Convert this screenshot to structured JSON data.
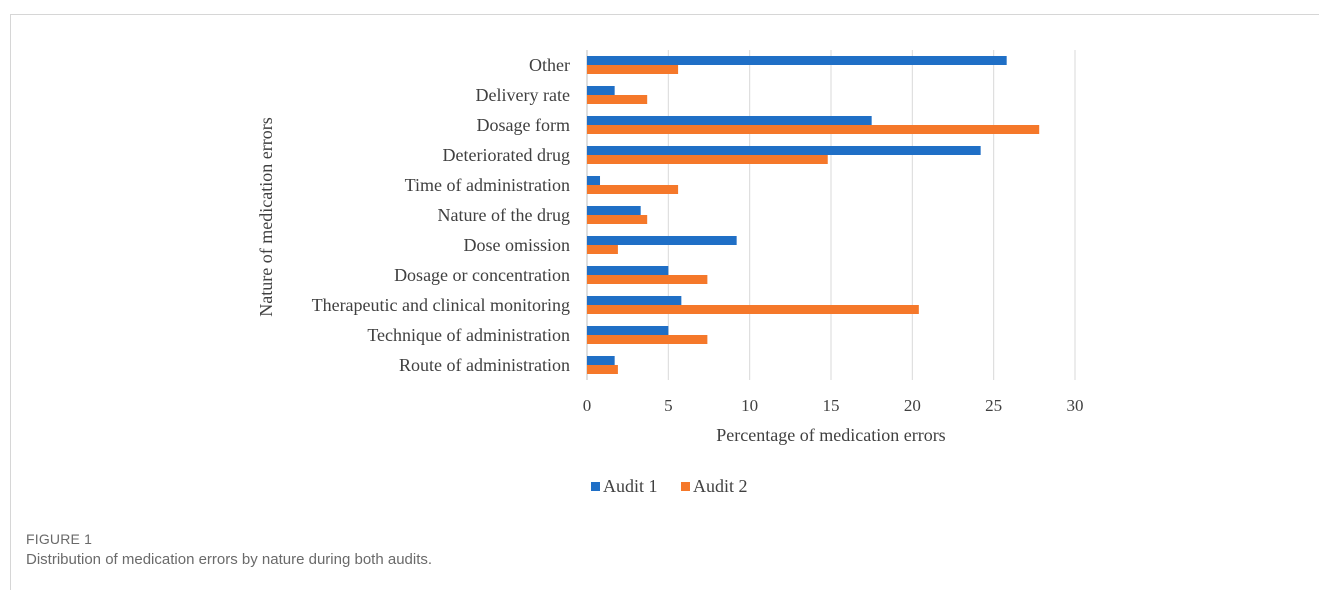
{
  "figure": {
    "label": "FIGURE 1",
    "caption": "Distribution of medication errors by nature during both audits."
  },
  "chart_data": {
    "type": "bar",
    "orientation": "horizontal",
    "categories": [
      "Other",
      "Delivery rate",
      "Dosage form",
      "Deteriorated drug",
      "Time of administration",
      "Nature of the drug",
      "Dose omission",
      "Dosage or concentration",
      "Therapeutic and clinical monitoring",
      "Technique of administration",
      "Route of administration"
    ],
    "series": [
      {
        "name": "Audit 1",
        "color": "#1f6fc6",
        "values": [
          25.8,
          1.7,
          17.5,
          24.2,
          0.8,
          3.3,
          9.2,
          5.0,
          5.8,
          5.0,
          1.7
        ]
      },
      {
        "name": "Audit 2",
        "color": "#f5782a",
        "values": [
          5.6,
          3.7,
          27.8,
          14.8,
          5.6,
          3.7,
          1.9,
          7.4,
          20.4,
          7.4,
          1.9
        ]
      }
    ],
    "xlabel": "Percentage of medication errors",
    "ylabel": "Nature of medication errors",
    "xlim": [
      0,
      30
    ],
    "xticks": [
      0,
      5,
      10,
      15,
      20,
      25,
      30
    ],
    "grid": true,
    "legend": "bottom"
  }
}
